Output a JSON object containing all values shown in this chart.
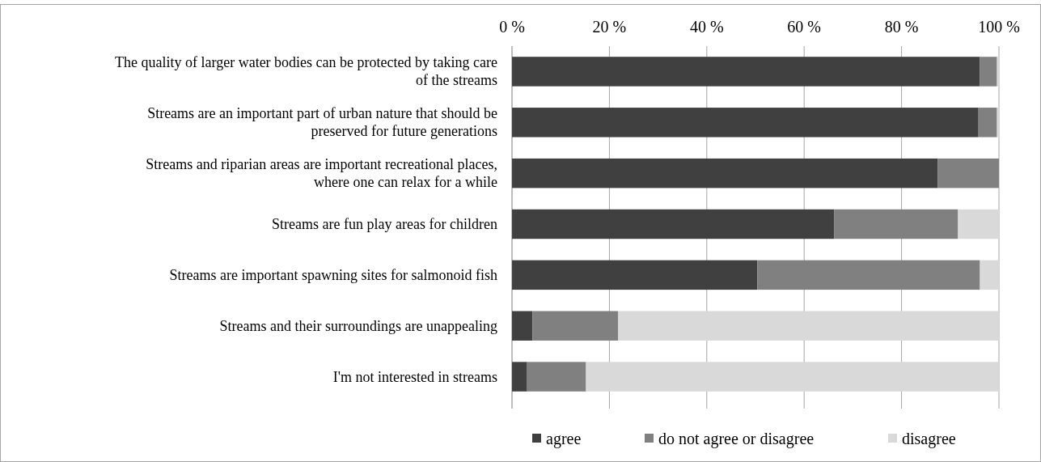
{
  "chart_data": {
    "type": "bar",
    "orientation": "horizontal",
    "stacked": true,
    "categories": [
      "The quality of larger water bodies can be protected by taking care of the streams",
      "Streams are an important part of urban nature that should be preserved for future generations",
      "Streams and riparian areas are important recreational places, where one can relax for a while",
      "Streams are fun play areas for children",
      "Streams are important spawning sites for salmonoid fish",
      "Streams and their surroundings are unappealing",
      "I'm not interested in streams"
    ],
    "series": [
      {
        "name": "agree",
        "color": "#404040",
        "values": [
          96.1,
          95.8,
          87.4,
          66.2,
          50.4,
          4.2,
          3.1
        ]
      },
      {
        "name": "do not agree or disagree",
        "color": "#808080",
        "values": [
          3.5,
          3.8,
          12.6,
          25.4,
          45.7,
          17.6,
          12.1
        ]
      },
      {
        "name": "disagree",
        "color": "#d9d9d9",
        "values": [
          0.4,
          0.4,
          0,
          8.4,
          3.9,
          78.2,
          84.8
        ]
      }
    ],
    "xlim": [
      0,
      100
    ],
    "xticks": [
      {
        "value": 0,
        "label": "0 %"
      },
      {
        "value": 20,
        "label": "20 %"
      },
      {
        "value": 40,
        "label": "40 %"
      },
      {
        "value": 60,
        "label": "60 %"
      },
      {
        "value": 80,
        "label": "80 %"
      },
      {
        "value": 100,
        "label": "100 %"
      }
    ],
    "grid": "x",
    "legend": "bottom"
  }
}
